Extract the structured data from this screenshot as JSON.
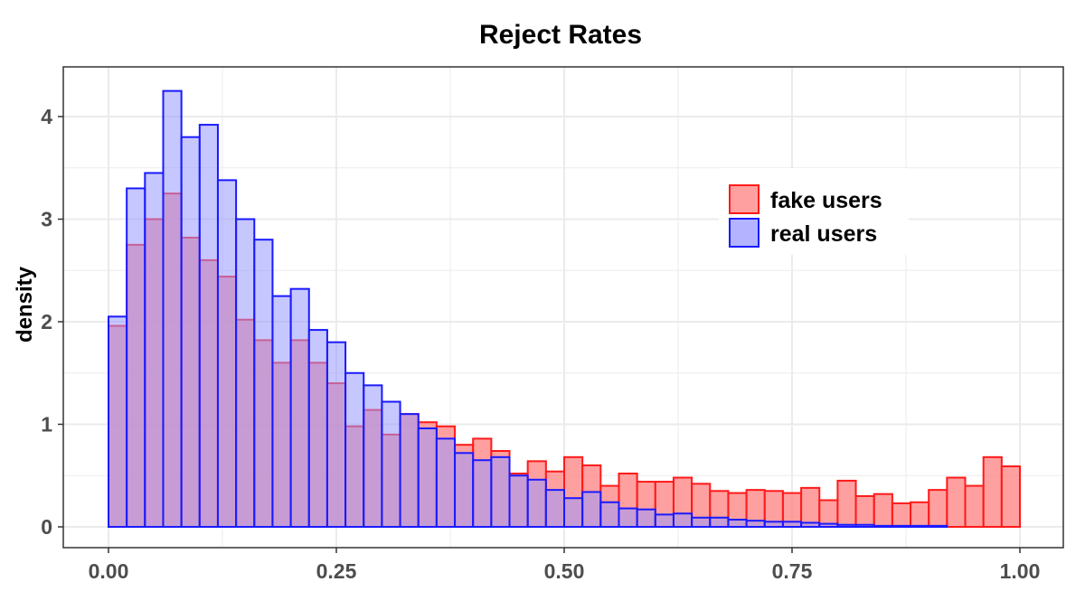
{
  "chart_data": {
    "type": "histogram",
    "title": "Reject Rates",
    "xlabel": "",
    "ylabel": "density",
    "xlim": [
      0,
      1
    ],
    "ylim": [
      0,
      4.35
    ],
    "x_ticks": [
      "0.00",
      "0.25",
      "0.50",
      "0.75",
      "1.00"
    ],
    "x_tick_values": [
      0,
      0.25,
      0.5,
      0.75,
      1.0
    ],
    "y_ticks": [
      "0",
      "1",
      "2",
      "3",
      "4"
    ],
    "y_tick_values": [
      0,
      1,
      2,
      3,
      4
    ],
    "bin_width": 0.02,
    "bin_starts": [
      0.0,
      0.02,
      0.04,
      0.06,
      0.08,
      0.1,
      0.12,
      0.14,
      0.16,
      0.18,
      0.2,
      0.22,
      0.24,
      0.26,
      0.28,
      0.3,
      0.32,
      0.34,
      0.36,
      0.38,
      0.4,
      0.42,
      0.44,
      0.46,
      0.48,
      0.5,
      0.52,
      0.54,
      0.56,
      0.58,
      0.6,
      0.62,
      0.64,
      0.66,
      0.68,
      0.7,
      0.72,
      0.74,
      0.76,
      0.78,
      0.8,
      0.82,
      0.84,
      0.86,
      0.88,
      0.9,
      0.92,
      0.94,
      0.96,
      0.98
    ],
    "series": [
      {
        "name": "real users",
        "fill": "#9999ff",
        "stroke": "#1a1aff",
        "values": [
          2.05,
          3.3,
          3.45,
          4.25,
          3.8,
          3.92,
          3.38,
          3.0,
          2.8,
          2.25,
          2.32,
          1.92,
          1.8,
          1.5,
          1.38,
          1.22,
          1.1,
          0.96,
          0.86,
          0.72,
          0.65,
          0.68,
          0.5,
          0.46,
          0.36,
          0.28,
          0.34,
          0.24,
          0.18,
          0.17,
          0.12,
          0.13,
          0.09,
          0.09,
          0.07,
          0.06,
          0.05,
          0.05,
          0.04,
          0.03,
          0.02,
          0.02,
          0.01,
          0.01,
          0.01,
          0.01,
          0.0,
          0.0,
          0.0,
          0.0
        ]
      },
      {
        "name": "fake users",
        "fill": "#ff8080",
        "stroke": "#ff1a1a",
        "values": [
          1.96,
          2.75,
          3.0,
          3.25,
          2.82,
          2.6,
          2.44,
          2.02,
          1.82,
          1.6,
          1.82,
          1.6,
          1.4,
          0.98,
          1.14,
          0.9,
          1.1,
          1.02,
          0.98,
          0.8,
          0.86,
          0.74,
          0.52,
          0.64,
          0.54,
          0.68,
          0.6,
          0.4,
          0.52,
          0.44,
          0.44,
          0.48,
          0.42,
          0.35,
          0.33,
          0.36,
          0.35,
          0.33,
          0.38,
          0.26,
          0.45,
          0.3,
          0.32,
          0.23,
          0.24,
          0.36,
          0.48,
          0.4,
          0.68,
          0.59
        ]
      }
    ],
    "legend": {
      "position": "top-right",
      "entries": [
        "fake users",
        "real users"
      ]
    },
    "grid": true
  }
}
